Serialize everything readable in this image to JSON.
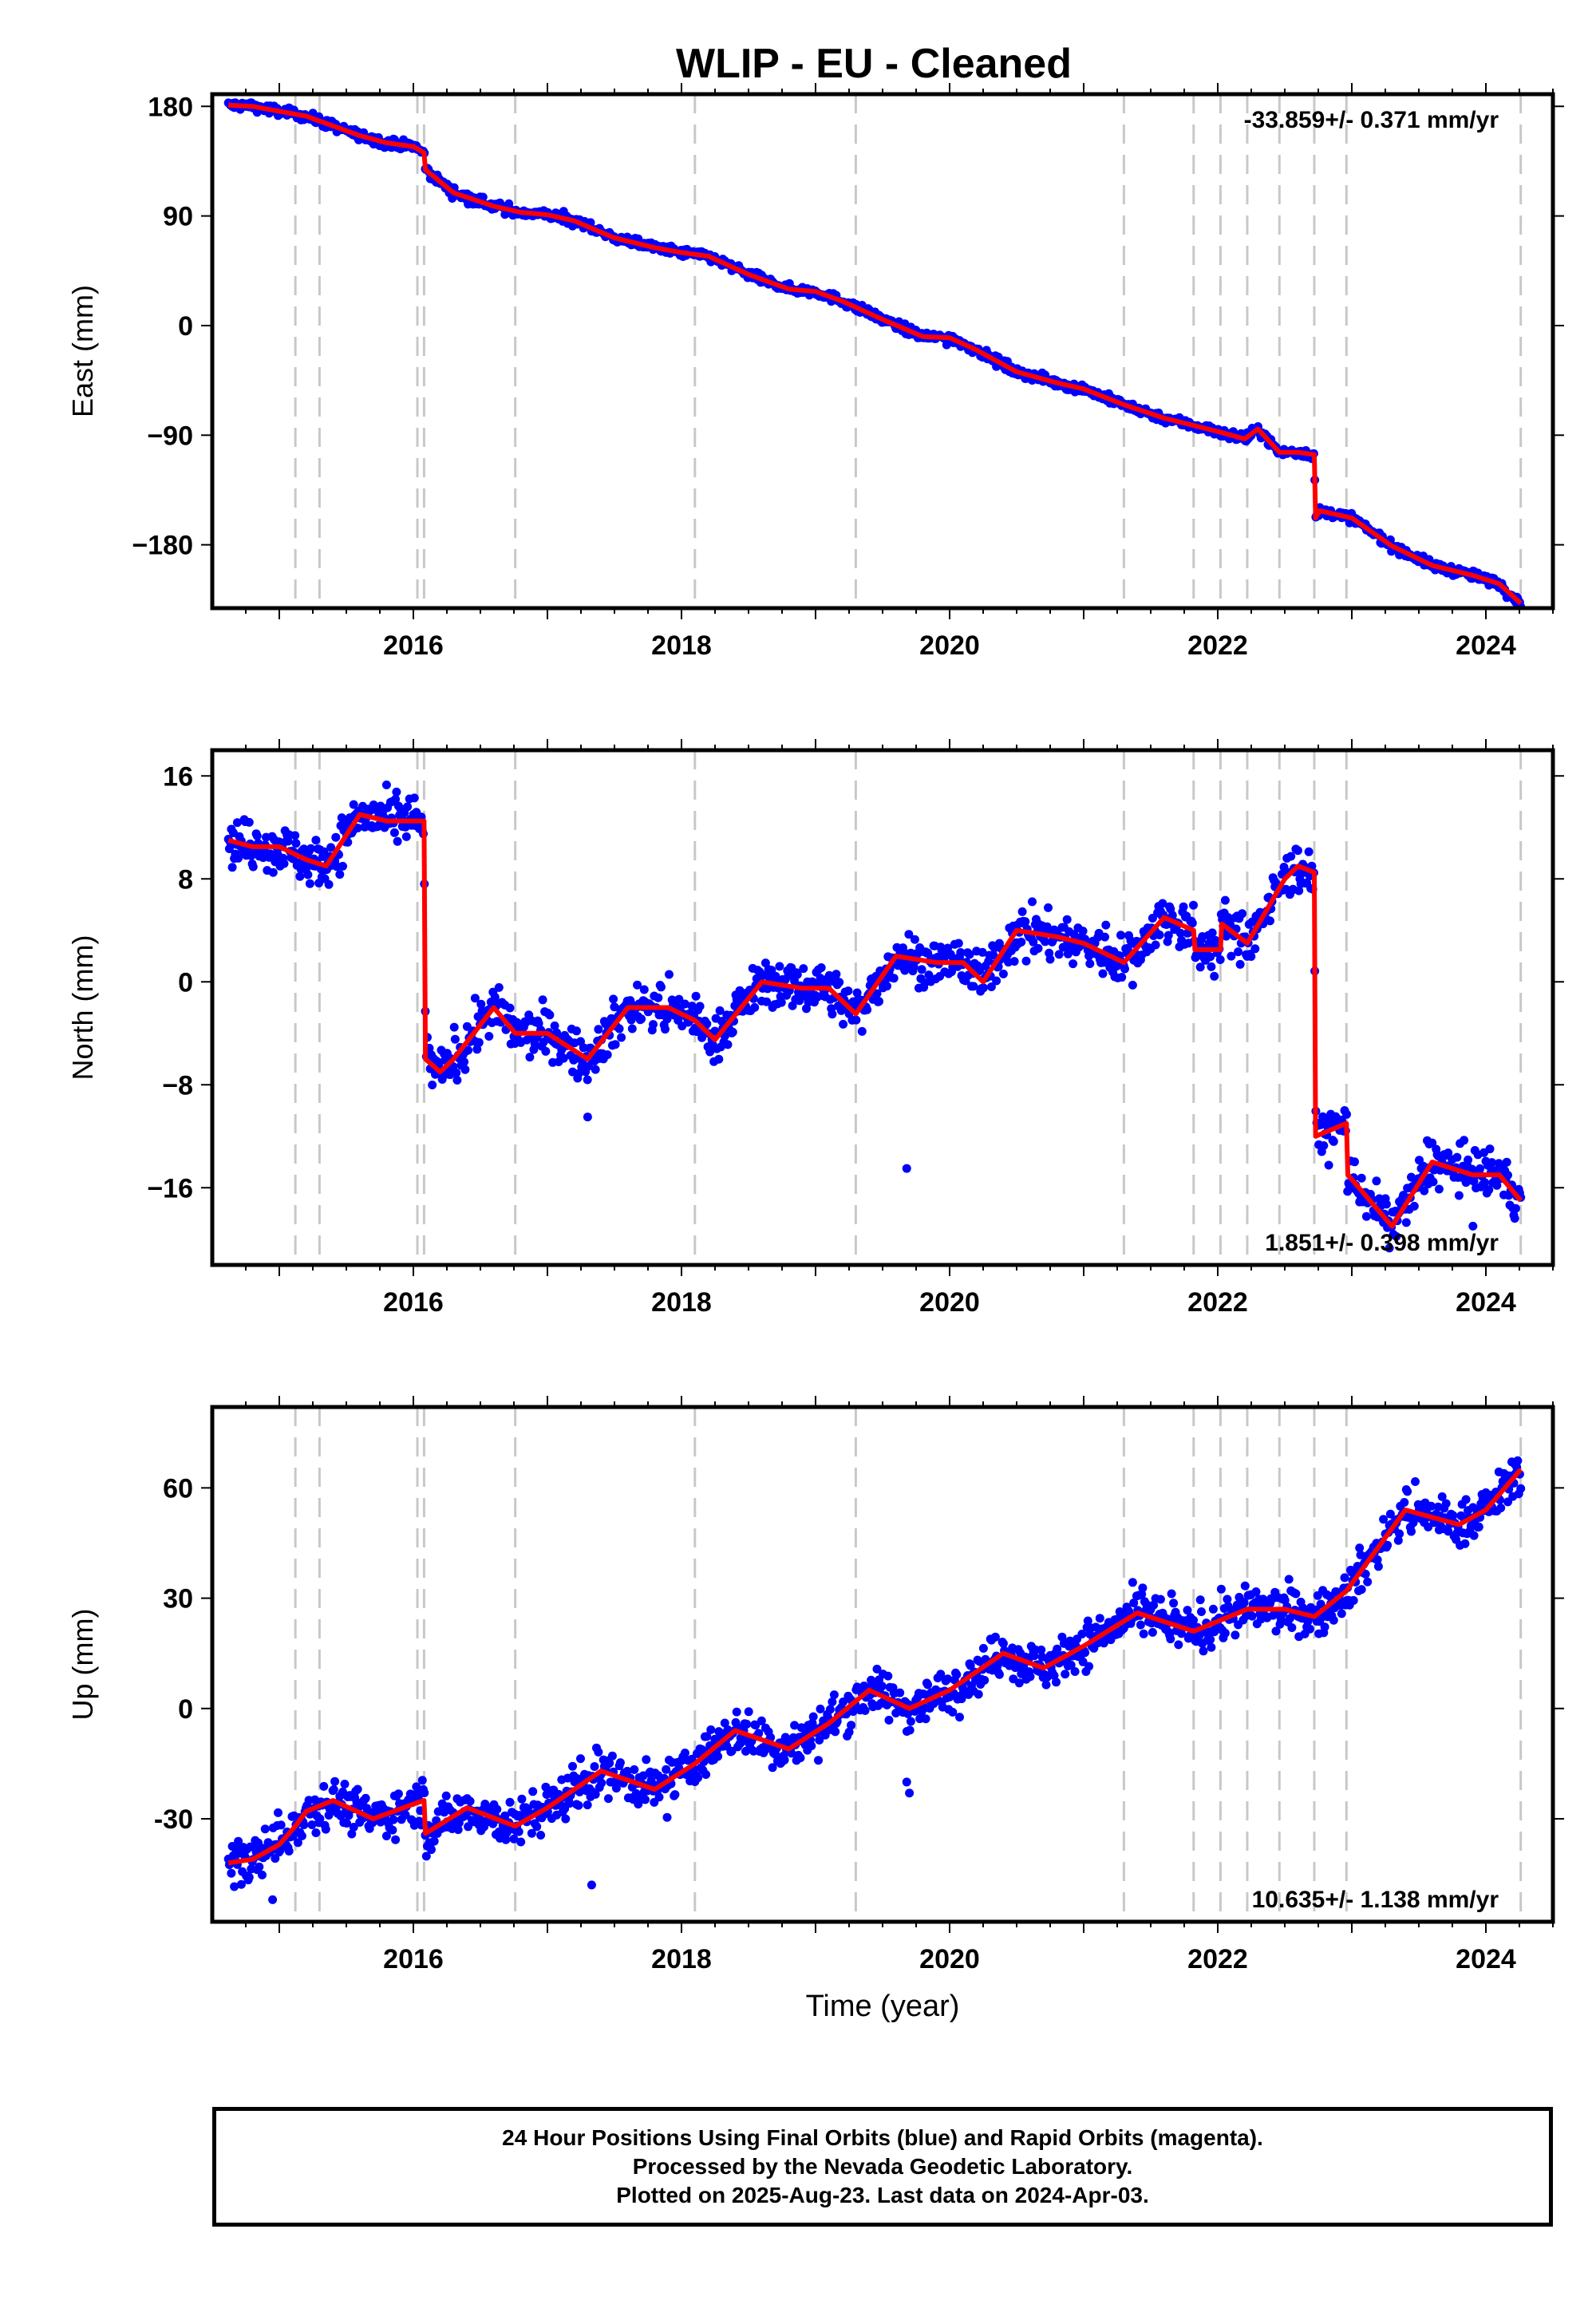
{
  "title": "WLIP  - EU - Cleaned",
  "colors": {
    "points": "#0000ff",
    "model": "#ff0000",
    "breaks": "#c8c8c8",
    "axis": "#000000"
  },
  "footer": {
    "line1": "24 Hour Positions Using Final Orbits (blue) and Rapid Orbits (magenta).",
    "line2": "Processed by the Nevada Geodetic Laboratory.",
    "line3": "Plotted on 2025-Aug-23. Last data on 2024-Apr-03."
  },
  "chart_data": [
    {
      "type": "scatter",
      "name": "east",
      "title": "WLIP  - EU - Cleaned",
      "ylabel": "East (mm)",
      "xlabel": "",
      "xlim": [
        2014.5,
        2024.5
      ],
      "ylim": [
        -232,
        190
      ],
      "yticks": [
        180,
        90,
        0,
        -90,
        -180
      ],
      "ytick_labels": [
        "180",
        "90",
        "0",
        "−90",
        "−180"
      ],
      "xticks": [
        2016,
        2018,
        2020,
        2022,
        2024
      ],
      "xtick_labels": [
        "2016",
        "2018",
        "2020",
        "2022",
        "2024"
      ],
      "annotation": "-33.859+/- 0.371 mm/yr",
      "annotation_pos": "top-right",
      "grid": false,
      "breaks": [
        2015.12,
        2015.3,
        2016.03,
        2016.08,
        2016.76,
        2018.1,
        2019.3,
        2021.3,
        2021.82,
        2022.02,
        2022.22,
        2022.46,
        2022.72,
        2022.96,
        2024.26
      ],
      "model": {
        "x": [
          2014.62,
          2014.8,
          2015.0,
          2015.2,
          2015.4,
          2015.6,
          2015.8,
          2016.0,
          2016.08,
          2016.09,
          2016.3,
          2016.6,
          2016.8,
          2017.0,
          2017.2,
          2017.5,
          2017.8,
          2018.0,
          2018.2,
          2018.5,
          2018.8,
          2019.0,
          2019.2,
          2019.5,
          2019.8,
          2020.0,
          2020.2,
          2020.5,
          2020.8,
          2021.0,
          2021.3,
          2021.6,
          2021.82,
          2022.0,
          2022.2,
          2022.3,
          2022.46,
          2022.6,
          2022.72,
          2022.73,
          2022.76,
          2023.0,
          2023.3,
          2023.6,
          2023.9,
          2024.1,
          2024.26
        ],
        "y": [
          181,
          180,
          176,
          172,
          164,
          156,
          150,
          147,
          142,
          128,
          109,
          98,
          93,
          91,
          86,
          72,
          64,
          60,
          57,
          42,
          30,
          28,
          20,
          5,
          -9,
          -10,
          -20,
          -38,
          -47,
          -52,
          -65,
          -76,
          -82,
          -87,
          -93,
          -85,
          -104,
          -104,
          -106,
          -158,
          -152,
          -158,
          -181,
          -197,
          -205,
          -212,
          -228
        ]
      },
      "scatter": {
        "noise": 2.6,
        "outliers": 0
      }
    },
    {
      "type": "scatter",
      "name": "north",
      "ylabel": "North (mm)",
      "xlabel": "",
      "xlim": [
        2014.5,
        2024.5
      ],
      "ylim": [
        -22,
        18
      ],
      "yticks": [
        16,
        8,
        0,
        -8,
        -16
      ],
      "ytick_labels": [
        "16",
        "8",
        "0",
        "−8",
        "−16"
      ],
      "xticks": [
        2016,
        2018,
        2020,
        2022,
        2024
      ],
      "xtick_labels": [
        "2016",
        "2018",
        "2020",
        "2022",
        "2024"
      ],
      "annotation": "1.851+/- 0.398 mm/yr",
      "annotation_pos": "bottom-right",
      "grid": false,
      "breaks": [
        2015.12,
        2015.3,
        2016.03,
        2016.08,
        2016.76,
        2018.1,
        2019.3,
        2021.3,
        2021.82,
        2022.02,
        2022.22,
        2022.46,
        2022.72,
        2022.96,
        2024.26
      ],
      "model": {
        "x": [
          2014.62,
          2014.8,
          2015.0,
          2015.2,
          2015.35,
          2015.6,
          2015.8,
          2016.0,
          2016.08,
          2016.09,
          2016.2,
          2016.3,
          2016.6,
          2016.76,
          2017.0,
          2017.3,
          2017.6,
          2017.9,
          2018.1,
          2018.25,
          2018.6,
          2018.9,
          2019.1,
          2019.3,
          2019.6,
          2019.9,
          2020.1,
          2020.25,
          2020.5,
          2020.8,
          2021.0,
          2021.3,
          2021.6,
          2021.82,
          2021.83,
          2022.02,
          2022.03,
          2022.22,
          2022.5,
          2022.6,
          2022.72,
          2022.73,
          2022.96,
          2022.97,
          2023.3,
          2023.6,
          2023.9,
          2024.1,
          2024.26
        ],
        "y": [
          11,
          10.5,
          10.5,
          9.5,
          9,
          13,
          12.5,
          12.5,
          12.5,
          -6,
          -7,
          -6,
          -2,
          -4,
          -4,
          -6,
          -2,
          -2,
          -3,
          -4.5,
          0,
          -0.5,
          -0.5,
          -2.5,
          2,
          1.5,
          1.5,
          0,
          4,
          3.5,
          3,
          1.5,
          5,
          4,
          2.5,
          2.5,
          4.5,
          3,
          8,
          9,
          8.5,
          -12,
          -11,
          -15,
          -19,
          -14,
          -15,
          -15,
          -17
        ]
      },
      "scatter": {
        "noise": 1.3,
        "outliers": 1,
        "outlier_points": [
          [
            2019.68,
            -14.5
          ],
          [
            2017.3,
            -10.5
          ]
        ]
      }
    },
    {
      "type": "scatter",
      "name": "up",
      "ylabel": "Up (mm)",
      "xlabel": "Time (year)",
      "xlim": [
        2014.5,
        2024.5
      ],
      "ylim": [
        -58,
        82
      ],
      "yticks": [
        60,
        30,
        0,
        -30
      ],
      "ytick_labels": [
        "60",
        "30",
        "0",
        "-30"
      ],
      "xticks": [
        2016,
        2018,
        2020,
        2022,
        2024
      ],
      "xtick_labels": [
        "2016",
        "2018",
        "2020",
        "2022",
        "2024"
      ],
      "annotation": "10.635+/- 1.138 mm/yr",
      "annotation_pos": "bottom-right",
      "grid": false,
      "breaks": [
        2015.12,
        2015.3,
        2016.03,
        2016.08,
        2016.76,
        2018.1,
        2019.3,
        2021.3,
        2021.82,
        2022.02,
        2022.22,
        2022.46,
        2022.72,
        2022.96,
        2024.26
      ],
      "model": {
        "x": [
          2014.62,
          2014.8,
          2015.0,
          2015.12,
          2015.2,
          2015.4,
          2015.7,
          2016.0,
          2016.08,
          2016.09,
          2016.4,
          2016.76,
          2017.0,
          2017.4,
          2017.8,
          2018.1,
          2018.4,
          2018.8,
          2019.1,
          2019.4,
          2019.7,
          2020.0,
          2020.4,
          2020.7,
          2021.0,
          2021.4,
          2021.82,
          2022.02,
          2022.22,
          2022.5,
          2022.72,
          2022.96,
          2023.4,
          2023.8,
          2024.0,
          2024.26
        ],
        "y": [
          -42,
          -41,
          -37,
          -32,
          -28,
          -25,
          -30,
          -26,
          -25,
          -34,
          -27,
          -32,
          -27,
          -17,
          -22,
          -15,
          -6,
          -11,
          -4,
          5,
          0,
          5,
          15,
          11,
          17,
          26,
          21,
          24,
          27,
          27,
          25,
          32,
          54,
          50,
          54,
          65
        ]
      },
      "scatter": {
        "noise": 4.2,
        "outliers": 1,
        "outlier_points": [
          [
            2017.33,
            -48
          ],
          [
            2019.7,
            -23
          ],
          [
            2019.68,
            -20
          ],
          [
            2014.95,
            -52
          ]
        ]
      }
    }
  ]
}
